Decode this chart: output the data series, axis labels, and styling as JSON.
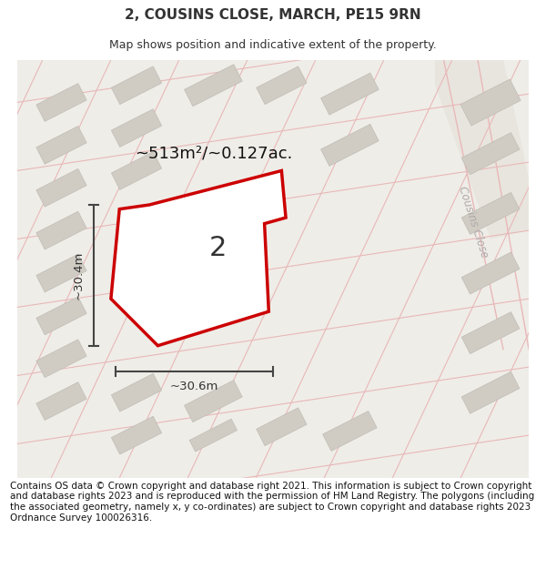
{
  "title": "2, COUSINS CLOSE, MARCH, PE15 9RN",
  "subtitle": "Map shows position and indicative extent of the property.",
  "footer": "Contains OS data © Crown copyright and database right 2021. This information is subject to Crown copyright and database rights 2023 and is reproduced with the permission of HM Land Registry. The polygons (including the associated geometry, namely x, y co-ordinates) are subject to Crown copyright and database rights 2023 Ordnance Survey 100026316.",
  "area_label": "~513m²/~0.127ac.",
  "number_label": "2",
  "width_label": "~30.6m",
  "height_label": "~30.4m",
  "street_label": "Cousins Close",
  "map_bg": "#efede8",
  "road_color": "#e8b8b8",
  "road_fill": "#e8b8b8",
  "building_fill": "#d0ccC4",
  "building_ec": "#c0bdb5",
  "plot_fill": "#ffffff",
  "plot_outline": "#cc0000",
  "text_color": "#333333",
  "street_color": "#b0aaaa",
  "title_fontsize": 11,
  "subtitle_fontsize": 9,
  "footer_fontsize": 7.5
}
